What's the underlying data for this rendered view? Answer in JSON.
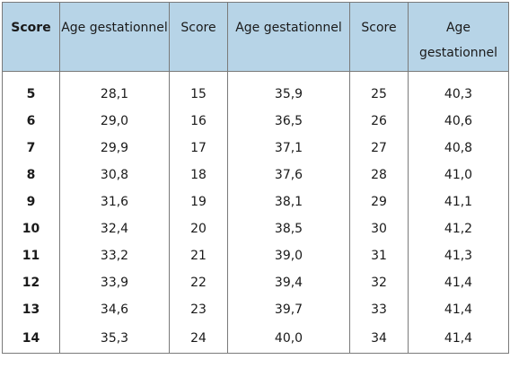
{
  "headers": {
    "score_1": "Score",
    "age_1": "Age gestationnel",
    "score_2": "Score",
    "age_2": "Age gestationnel",
    "score_3": "Score",
    "age_3": "Age gestationnel"
  },
  "rows": [
    {
      "score_1": "5",
      "age_1": "28,1",
      "score_2": "15",
      "age_2": "35,9",
      "score_3": "25",
      "age_3": "40,3"
    },
    {
      "score_1": "6",
      "age_1": "29,0",
      "score_2": "16",
      "age_2": "36,5",
      "score_3": "26",
      "age_3": "40,6"
    },
    {
      "score_1": "7",
      "age_1": "29,9",
      "score_2": "17",
      "age_2": "37,1",
      "score_3": "27",
      "age_3": "40,8"
    },
    {
      "score_1": "8",
      "age_1": "30,8",
      "score_2": "18",
      "age_2": "37,6",
      "score_3": "28",
      "age_3": "41,0"
    },
    {
      "score_1": "9",
      "age_1": "31,6",
      "score_2": "19",
      "age_2": "38,1",
      "score_3": "29",
      "age_3": "41,1"
    },
    {
      "score_1": "10",
      "age_1": "32,4",
      "score_2": "20",
      "age_2": "38,5",
      "score_3": "30",
      "age_3": "41,2"
    },
    {
      "score_1": "11",
      "age_1": "33,2",
      "score_2": "21",
      "age_2": "39,0",
      "score_3": "31",
      "age_3": "41,3"
    },
    {
      "score_1": "12",
      "age_1": "33,9",
      "score_2": "22",
      "age_2": "39,4",
      "score_3": "32",
      "age_3": "41,4"
    },
    {
      "score_1": "13",
      "age_1": "34,6",
      "score_2": "23",
      "age_2": "39,7",
      "score_3": "33",
      "age_3": "41,4"
    },
    {
      "score_1": "14",
      "age_1": "35,3",
      "score_2": "24",
      "age_2": "40,0",
      "score_3": "34",
      "age_3": "41,4"
    }
  ],
  "colors": {
    "header_background": "#b7d4e7",
    "border": "#7a7a7a",
    "text": "#1a1a1a"
  }
}
